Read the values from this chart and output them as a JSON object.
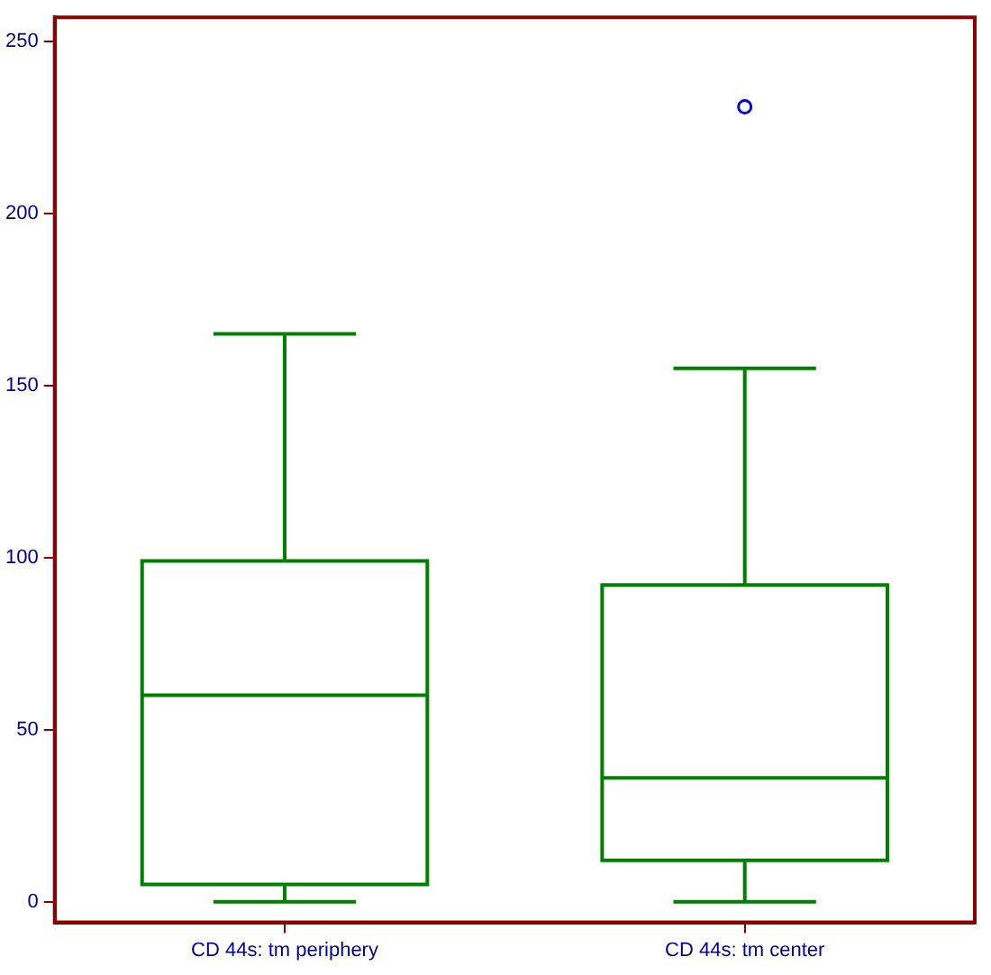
{
  "chart_data": {
    "type": "box",
    "categories": [
      "CD 44s: tm periphery",
      "CD 44s: tm center"
    ],
    "boxes": [
      {
        "low": 0,
        "q1": 5,
        "median": 60,
        "q3": 99,
        "high": 165
      },
      {
        "low": 0,
        "q1": 12,
        "median": 36,
        "q3": 92,
        "high": 155,
        "outliers": [
          231
        ]
      }
    ],
    "color": "#008000",
    "ylim": [
      -6,
      257
    ],
    "yticks": [
      0,
      50,
      100,
      150,
      200,
      250
    ],
    "grid": false
  }
}
